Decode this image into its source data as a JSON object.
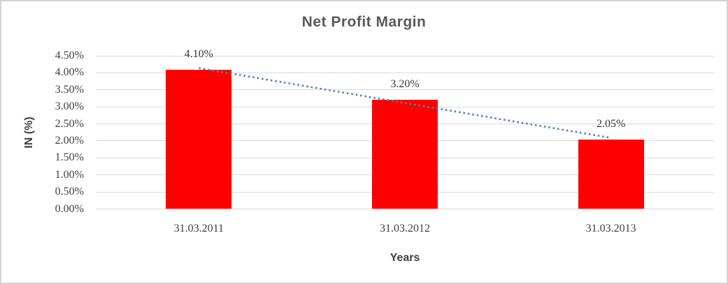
{
  "chart_data": {
    "type": "bar",
    "title": "Net Profit Margin",
    "categories": [
      "31.03.2011",
      "31.03.2012",
      "31.03.2013"
    ],
    "values": [
      4.1,
      3.2,
      2.05
    ],
    "data_labels": [
      "4.10%",
      "3.20%",
      "2.05%"
    ],
    "xlabel": "Years",
    "ylabel": "IN (%)",
    "ylim": [
      0,
      4.5
    ],
    "ytick_step": 0.5,
    "ytick_labels": [
      "4.50%",
      "4.00%",
      "3.50%",
      "3.00%",
      "2.50%",
      "2.00%",
      "1.50%",
      "1.00%",
      "0.50%",
      "0.00%"
    ],
    "grid": true,
    "legend_position": "none",
    "bar_color": "#ff0000",
    "gridline_color": "#d9d9d9",
    "title_color": "#595959",
    "label_color": "#3f3f3f",
    "trendline": {
      "type": "linear",
      "style": "dotted",
      "color": "#4f81bd",
      "start_value": 4.14,
      "end_value": 2.09
    }
  }
}
